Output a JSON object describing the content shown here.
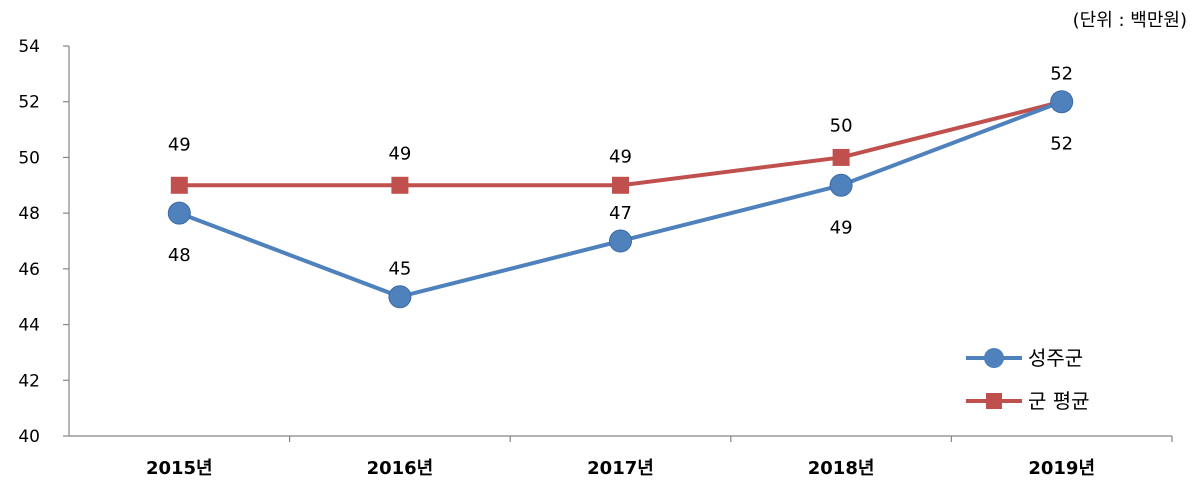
{
  "chart_data": {
    "type": "line",
    "unit_label": "(단위 : 백만원)",
    "categories": [
      "2015년",
      "2016년",
      "2017년",
      "2018년",
      "2019년"
    ],
    "ylim": [
      40,
      54
    ],
    "yticks": [
      40,
      42,
      44,
      46,
      48,
      50,
      52,
      54
    ],
    "grid": false,
    "legend_position": "bottom-right",
    "series": [
      {
        "name": "성주군",
        "values": [
          48,
          45,
          47,
          49,
          52
        ],
        "color": "#4F81BD",
        "marker": "circle"
      },
      {
        "name": "군 평균",
        "values": [
          49,
          49,
          49,
          50,
          52
        ],
        "color": "#C0504D",
        "marker": "square"
      }
    ]
  }
}
